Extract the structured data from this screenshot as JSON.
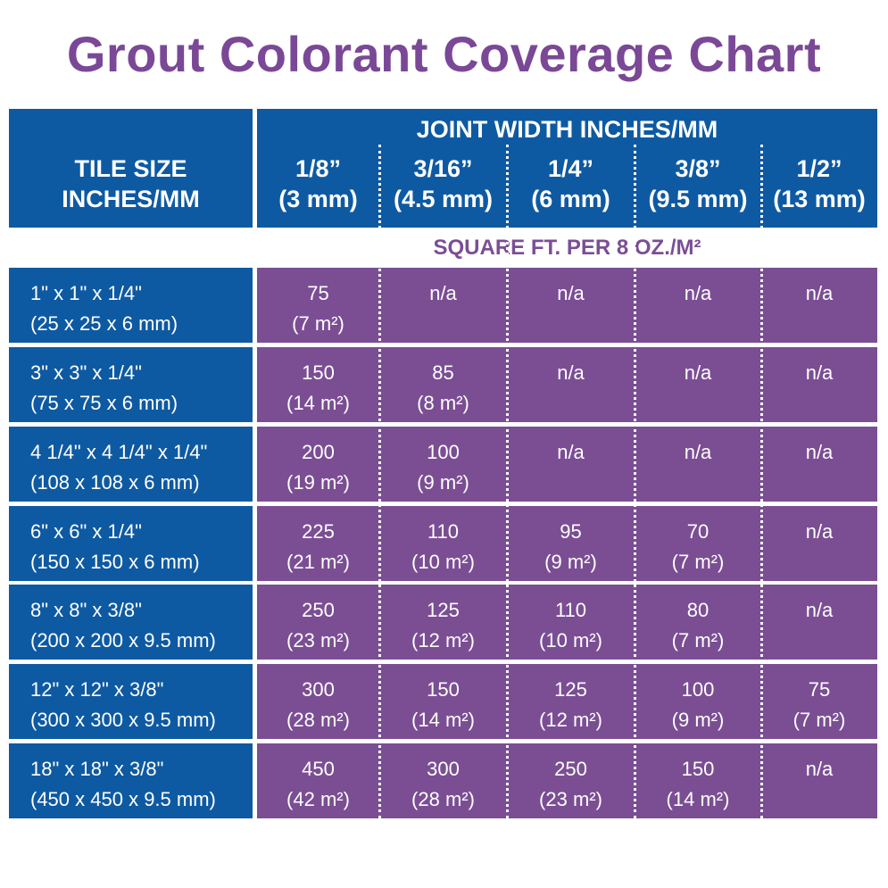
{
  "title": "Grout Colorant Coverage Chart",
  "header": {
    "tile_size": [
      "TILE SIZE",
      "INCHES/MM"
    ],
    "joint_width": "JOINT WIDTH INCHES/MM",
    "columns": [
      {
        "inch": "1/8”",
        "mm": "(3 mm)"
      },
      {
        "inch": "3/16”",
        "mm": "(4.5 mm)"
      },
      {
        "inch": "1/4”",
        "mm": "(6 mm)"
      },
      {
        "inch": "3/8”",
        "mm": "(9.5 mm)"
      },
      {
        "inch": "1/2”",
        "mm": "(13 mm)"
      }
    ]
  },
  "subheader": "SQUARE FT. PER 8 OZ./M²",
  "table": {
    "rows": [
      {
        "size": "1\" x 1\" x 1/4\"",
        "size_mm": "(25 x 25 x 6 mm)",
        "cells": [
          {
            "value": "75",
            "metric": "(7 m²)"
          },
          {
            "value": "n/a"
          },
          {
            "value": "n/a"
          },
          {
            "value": "n/a"
          },
          {
            "value": "n/a"
          }
        ]
      },
      {
        "size": "3\" x 3\" x 1/4\"",
        "size_mm": "(75 x 75 x 6 mm)",
        "cells": [
          {
            "value": "150",
            "metric": "(14 m²)"
          },
          {
            "value": "85",
            "metric": "(8 m²)"
          },
          {
            "value": "n/a"
          },
          {
            "value": "n/a"
          },
          {
            "value": "n/a"
          }
        ]
      },
      {
        "size": "4 1/4\" x 4 1/4\" x 1/4\"",
        "size_mm": "(108 x 108 x 6 mm)",
        "cells": [
          {
            "value": "200",
            "metric": "(19 m²)"
          },
          {
            "value": "100",
            "metric": "(9 m²)"
          },
          {
            "value": "n/a"
          },
          {
            "value": "n/a"
          },
          {
            "value": "n/a"
          }
        ]
      },
      {
        "size": "6\" x 6\" x 1/4\"",
        "size_mm": "(150 x 150 x 6 mm)",
        "cells": [
          {
            "value": "225",
            "metric": "(21 m²)"
          },
          {
            "value": "110",
            "metric": "(10 m²)"
          },
          {
            "value": "95",
            "metric": "(9 m²)"
          },
          {
            "value": "70",
            "metric": "(7 m²)"
          },
          {
            "value": "n/a"
          }
        ]
      },
      {
        "size": "8\" x 8\" x 3/8\"",
        "size_mm": "(200 x 200 x 9.5 mm)",
        "cells": [
          {
            "value": "250",
            "metric": "(23 m²)"
          },
          {
            "value": "125",
            "metric": "(12 m²)"
          },
          {
            "value": "110",
            "metric": "(10 m²)"
          },
          {
            "value": "80",
            "metric": "(7 m²)"
          },
          {
            "value": "n/a"
          }
        ]
      },
      {
        "size": "12\" x 12\" x 3/8\"",
        "size_mm": "(300 x 300 x 9.5 mm)",
        "cells": [
          {
            "value": "300",
            "metric": "(28 m²)"
          },
          {
            "value": "150",
            "metric": "(14 m²)"
          },
          {
            "value": "125",
            "metric": "(12 m²)"
          },
          {
            "value": "100",
            "metric": "(9 m²)"
          },
          {
            "value": "75",
            "metric": "(7 m²)"
          }
        ]
      },
      {
        "size": "18\" x 18\" x 3/8\"",
        "size_mm": "(450 x 450 x 9.5 mm)",
        "cells": [
          {
            "value": "450",
            "metric": "(42 m²)"
          },
          {
            "value": "300",
            "metric": "(28 m²)"
          },
          {
            "value": "250",
            "metric": "(23 m²)"
          },
          {
            "value": "150",
            "metric": "(14 m²)"
          },
          {
            "value": "n/a"
          }
        ]
      }
    ]
  }
}
